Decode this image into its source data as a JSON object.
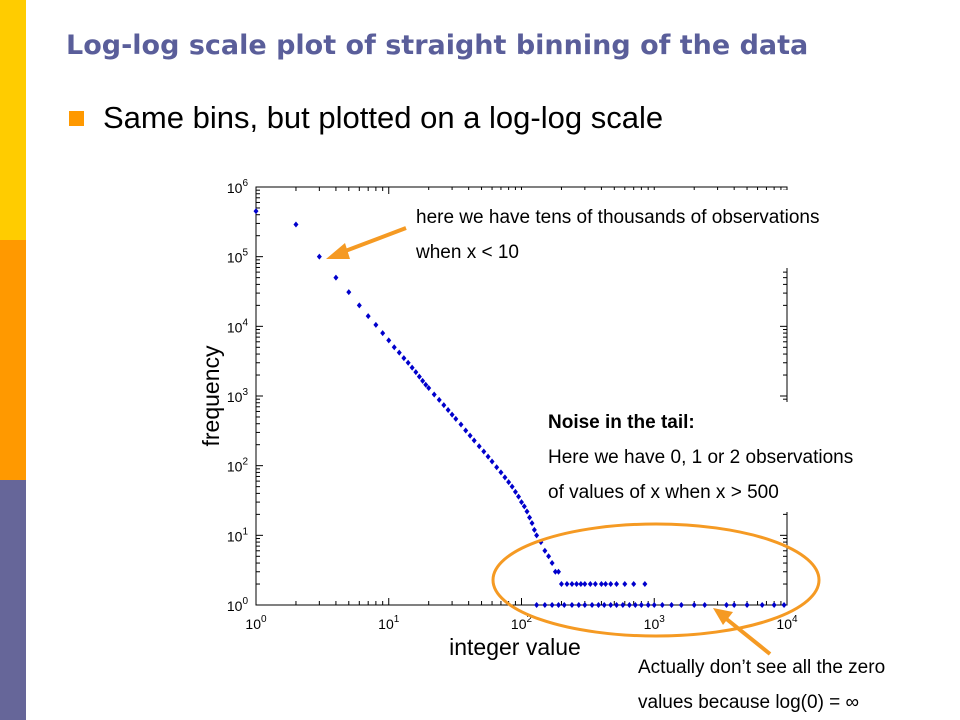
{
  "slide": {
    "title": "Log-log scale plot of straight binning of the data",
    "bullet": "Same bins, but plotted on a log-log scale"
  },
  "annotations": {
    "top_line1": "here we have tens of thousands of observations",
    "top_line2": "when x < 10",
    "noise_heading": "Noise in the tail:",
    "noise_line1": "Here we have 0, 1 or 2 observations",
    "noise_line2": "of values of x when x > 500",
    "bottom_line1": "Actually don’t see all the zero",
    "bottom_line2": "values because log(0) = ∞"
  },
  "colors": {
    "title": "#5a5e9a",
    "accent": "#ff9900",
    "sidebar": [
      "#ffcc00",
      "#ff9900",
      "#666699"
    ],
    "points": "#0000cc",
    "annotation": "#f59a23"
  },
  "chart_data": {
    "type": "scatter",
    "xscale": "log",
    "yscale": "log",
    "xlim": [
      1,
      10000
    ],
    "ylim": [
      1,
      1000000
    ],
    "xlabel": "integer value",
    "ylabel": "frequency",
    "x_ticks": [
      "10^0",
      "10^1",
      "10^2",
      "10^3",
      "10^4"
    ],
    "y_ticks": [
      "10^0",
      "10^1",
      "10^2",
      "10^3",
      "10^4",
      "10^5",
      "10^6"
    ],
    "series": [
      {
        "points": [
          [
            1,
            450000
          ],
          [
            2,
            290000
          ],
          [
            3,
            100000
          ],
          [
            4,
            50000
          ],
          [
            5,
            31000
          ],
          [
            6,
            20000
          ],
          [
            7,
            14000
          ],
          [
            8,
            10500
          ],
          [
            9,
            8000
          ],
          [
            10,
            6300
          ],
          [
            11,
            5000
          ],
          [
            12,
            4200
          ],
          [
            13,
            3500
          ],
          [
            14,
            3000
          ],
          [
            15,
            2550
          ],
          [
            16,
            2200
          ],
          [
            17,
            1900
          ],
          [
            18,
            1650
          ],
          [
            19,
            1450
          ],
          [
            20,
            1300
          ],
          [
            22,
            1050
          ],
          [
            24,
            880
          ],
          [
            26,
            740
          ],
          [
            28,
            630
          ],
          [
            30,
            540
          ],
          [
            32,
            470
          ],
          [
            35,
            390
          ],
          [
            38,
            320
          ],
          [
            41,
            270
          ],
          [
            44,
            230
          ],
          [
            48,
            190
          ],
          [
            52,
            160
          ],
          [
            56,
            135
          ],
          [
            60,
            115
          ],
          [
            65,
            95
          ],
          [
            70,
            80
          ],
          [
            75,
            68
          ],
          [
            80,
            58
          ],
          [
            85,
            50
          ],
          [
            90,
            42
          ],
          [
            95,
            36
          ],
          [
            100,
            30
          ],
          [
            105,
            26
          ],
          [
            110,
            22
          ],
          [
            115,
            18
          ],
          [
            120,
            15
          ],
          [
            125,
            12
          ],
          [
            130,
            10
          ],
          [
            140,
            8
          ],
          [
            150,
            6
          ],
          [
            160,
            5
          ],
          [
            170,
            4
          ],
          [
            180,
            3
          ],
          [
            190,
            3
          ],
          [
            200,
            2
          ],
          [
            220,
            2
          ],
          [
            240,
            2
          ],
          [
            260,
            2
          ],
          [
            280,
            2
          ],
          [
            300,
            2
          ],
          [
            330,
            2
          ],
          [
            360,
            2
          ],
          [
            400,
            2
          ],
          [
            430,
            2
          ],
          [
            470,
            2
          ],
          [
            520,
            2
          ],
          [
            600,
            2
          ],
          [
            700,
            2
          ],
          [
            850,
            2
          ],
          [
            130,
            1
          ],
          [
            150,
            1
          ],
          [
            170,
            1
          ],
          [
            190,
            1
          ],
          [
            210,
            1
          ],
          [
            240,
            1
          ],
          [
            270,
            1
          ],
          [
            300,
            1
          ],
          [
            340,
            1
          ],
          [
            380,
            1
          ],
          [
            420,
            1
          ],
          [
            470,
            1
          ],
          [
            520,
            1
          ],
          [
            580,
            1
          ],
          [
            650,
            1
          ],
          [
            720,
            1
          ],
          [
            800,
            1
          ],
          [
            900,
            1
          ],
          [
            1000,
            1
          ],
          [
            1150,
            1
          ],
          [
            1350,
            1
          ],
          [
            1600,
            1
          ],
          [
            2000,
            1
          ],
          [
            2400,
            1
          ],
          [
            3500,
            1
          ],
          [
            4000,
            1
          ],
          [
            5000,
            1
          ],
          [
            6500,
            1
          ],
          [
            8000,
            1
          ],
          [
            9500,
            1
          ]
        ]
      }
    ]
  }
}
